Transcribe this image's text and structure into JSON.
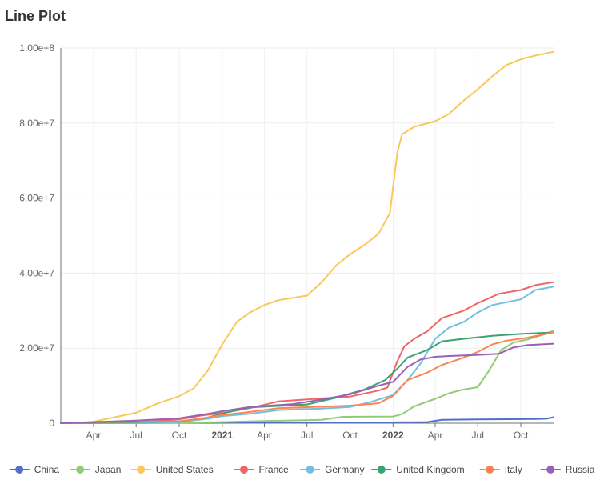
{
  "page": {
    "title": "Line Plot"
  },
  "colors": {
    "China": "#5470c6",
    "Japan": "#91cc75",
    "United States": "#fac858",
    "France": "#ee6666",
    "Germany": "#73c0de",
    "United Kingdom": "#3ba272",
    "Italy": "#fc8452",
    "Russia": "#9a60b4"
  },
  "chart_data": {
    "type": "line",
    "title": "Line Plot",
    "xlabel": "",
    "ylabel": "",
    "x_range": [
      "2020-01-22",
      "2022-12-10"
    ],
    "ylim": [
      0,
      100000000
    ],
    "y_ticks": [
      {
        "value": 0,
        "label": "0"
      },
      {
        "value": 20000000,
        "label": "2.00e+7"
      },
      {
        "value": 40000000,
        "label": "4.00e+7"
      },
      {
        "value": 60000000,
        "label": "6.00e+7"
      },
      {
        "value": 80000000,
        "label": "8.00e+7"
      },
      {
        "value": 100000000,
        "label": "1.00e+8"
      }
    ],
    "x_ticks": [
      {
        "date": "2020-04-01",
        "label": "Apr",
        "bold": false
      },
      {
        "date": "2020-07-01",
        "label": "Jul",
        "bold": false
      },
      {
        "date": "2020-10-01",
        "label": "Oct",
        "bold": false
      },
      {
        "date": "2021-01-01",
        "label": "2021",
        "bold": true
      },
      {
        "date": "2021-04-01",
        "label": "Apr",
        "bold": false
      },
      {
        "date": "2021-07-01",
        "label": "Jul",
        "bold": false
      },
      {
        "date": "2021-10-01",
        "label": "Oct",
        "bold": false
      },
      {
        "date": "2022-01-01",
        "label": "2022",
        "bold": true
      },
      {
        "date": "2022-04-01",
        "label": "Apr",
        "bold": false
      },
      {
        "date": "2022-07-01",
        "label": "Jul",
        "bold": false
      },
      {
        "date": "2022-10-01",
        "label": "Oct",
        "bold": false
      }
    ],
    "grid": true,
    "legend_position": "bottom",
    "series": [
      {
        "name": "China",
        "points": [
          [
            "2020-01-22",
            0
          ],
          [
            "2021-12-01",
            200000
          ],
          [
            "2022-03-15",
            300000
          ],
          [
            "2022-04-15",
            900000
          ],
          [
            "2022-07-01",
            1000000
          ],
          [
            "2022-11-01",
            1100000
          ],
          [
            "2022-11-25",
            1200000
          ],
          [
            "2022-12-10",
            1600000
          ]
        ]
      },
      {
        "name": "Japan",
        "points": [
          [
            "2020-01-22",
            0
          ],
          [
            "2020-10-01",
            100000
          ],
          [
            "2021-01-01",
            300000
          ],
          [
            "2021-04-01",
            600000
          ],
          [
            "2021-08-01",
            900000
          ],
          [
            "2021-09-15",
            1700000
          ],
          [
            "2022-01-01",
            1800000
          ],
          [
            "2022-01-20",
            2400000
          ],
          [
            "2022-02-15",
            4500000
          ],
          [
            "2022-04-01",
            6500000
          ],
          [
            "2022-05-01",
            8000000
          ],
          [
            "2022-06-01",
            9000000
          ],
          [
            "2022-07-01",
            9600000
          ],
          [
            "2022-07-25",
            14000000
          ],
          [
            "2022-08-20",
            19500000
          ],
          [
            "2022-09-15",
            21500000
          ],
          [
            "2022-10-15",
            22300000
          ],
          [
            "2022-11-15",
            23500000
          ],
          [
            "2022-12-10",
            24600000
          ]
        ]
      },
      {
        "name": "United States",
        "points": [
          [
            "2020-01-22",
            0
          ],
          [
            "2020-03-25",
            200000
          ],
          [
            "2020-05-01",
            1200000
          ],
          [
            "2020-07-01",
            2800000
          ],
          [
            "2020-08-15",
            5200000
          ],
          [
            "2020-10-01",
            7200000
          ],
          [
            "2020-11-01",
            9300000
          ],
          [
            "2020-12-01",
            14000000
          ],
          [
            "2021-01-01",
            21000000
          ],
          [
            "2021-02-01",
            27000000
          ],
          [
            "2021-03-01",
            29500000
          ],
          [
            "2021-04-01",
            31500000
          ],
          [
            "2021-05-01",
            32800000
          ],
          [
            "2021-07-01",
            34000000
          ],
          [
            "2021-08-01",
            37500000
          ],
          [
            "2021-09-01",
            42000000
          ],
          [
            "2021-10-01",
            45000000
          ],
          [
            "2021-11-01",
            47500000
          ],
          [
            "2021-12-01",
            50500000
          ],
          [
            "2021-12-25",
            56000000
          ],
          [
            "2022-01-10",
            72000000
          ],
          [
            "2022-01-20",
            77000000
          ],
          [
            "2022-02-15",
            79000000
          ],
          [
            "2022-04-01",
            80500000
          ],
          [
            "2022-05-01",
            82500000
          ],
          [
            "2022-06-01",
            86000000
          ],
          [
            "2022-07-01",
            89000000
          ],
          [
            "2022-08-01",
            92500000
          ],
          [
            "2022-09-01",
            95500000
          ],
          [
            "2022-10-01",
            97000000
          ],
          [
            "2022-11-01",
            98000000
          ],
          [
            "2022-12-10",
            99000000
          ]
        ]
      },
      {
        "name": "France",
        "points": [
          [
            "2020-01-22",
            0
          ],
          [
            "2020-07-01",
            200000
          ],
          [
            "2020-10-01",
            1000000
          ],
          [
            "2020-11-15",
            2000000
          ],
          [
            "2021-01-01",
            2700000
          ],
          [
            "2021-03-01",
            4000000
          ],
          [
            "2021-05-01",
            5800000
          ],
          [
            "2021-08-01",
            6600000
          ],
          [
            "2021-10-01",
            7100000
          ],
          [
            "2021-12-01",
            8700000
          ],
          [
            "2021-12-20",
            9500000
          ],
          [
            "2022-01-10",
            16500000
          ],
          [
            "2022-01-25",
            20500000
          ],
          [
            "2022-02-15",
            22500000
          ],
          [
            "2022-03-15",
            24500000
          ],
          [
            "2022-04-15",
            28000000
          ],
          [
            "2022-06-01",
            30000000
          ],
          [
            "2022-07-01",
            32000000
          ],
          [
            "2022-08-15",
            34500000
          ],
          [
            "2022-10-01",
            35500000
          ],
          [
            "2022-11-01",
            36800000
          ],
          [
            "2022-12-10",
            37600000
          ]
        ]
      },
      {
        "name": "Germany",
        "points": [
          [
            "2020-01-22",
            0
          ],
          [
            "2020-07-01",
            200000
          ],
          [
            "2020-10-01",
            300000
          ],
          [
            "2020-12-01",
            1200000
          ],
          [
            "2021-01-01",
            1900000
          ],
          [
            "2021-03-01",
            2500000
          ],
          [
            "2021-05-01",
            3500000
          ],
          [
            "2021-08-01",
            3900000
          ],
          [
            "2021-10-01",
            4300000
          ],
          [
            "2021-11-15",
            5700000
          ],
          [
            "2022-01-01",
            7500000
          ],
          [
            "2022-02-01",
            11500000
          ],
          [
            "2022-03-01",
            16000000
          ],
          [
            "2022-04-01",
            22500000
          ],
          [
            "2022-05-01",
            25500000
          ],
          [
            "2022-06-01",
            27000000
          ],
          [
            "2022-07-01",
            29500000
          ],
          [
            "2022-08-01",
            31500000
          ],
          [
            "2022-10-01",
            33000000
          ],
          [
            "2022-11-01",
            35500000
          ],
          [
            "2022-12-10",
            36400000
          ]
        ]
      },
      {
        "name": "United Kingdom",
        "points": [
          [
            "2020-01-22",
            0
          ],
          [
            "2020-07-01",
            300000
          ],
          [
            "2020-10-01",
            500000
          ],
          [
            "2020-12-01",
            1500000
          ],
          [
            "2021-01-01",
            2600000
          ],
          [
            "2021-03-01",
            4200000
          ],
          [
            "2021-07-01",
            5000000
          ],
          [
            "2021-09-01",
            6800000
          ],
          [
            "2021-11-01",
            9000000
          ],
          [
            "2021-12-15",
            11500000
          ],
          [
            "2022-01-10",
            14500000
          ],
          [
            "2022-02-01",
            17500000
          ],
          [
            "2022-03-15",
            19500000
          ],
          [
            "2022-04-15",
            21800000
          ],
          [
            "2022-06-01",
            22500000
          ],
          [
            "2022-08-01",
            23300000
          ],
          [
            "2022-10-01",
            23800000
          ],
          [
            "2022-12-10",
            24200000
          ]
        ]
      },
      {
        "name": "Italy",
        "points": [
          [
            "2020-01-22",
            0
          ],
          [
            "2020-04-01",
            300000
          ],
          [
            "2020-10-01",
            500000
          ],
          [
            "2020-11-15",
            1200000
          ],
          [
            "2021-01-01",
            2200000
          ],
          [
            "2021-03-01",
            3000000
          ],
          [
            "2021-05-01",
            4000000
          ],
          [
            "2021-08-01",
            4400000
          ],
          [
            "2021-10-01",
            4700000
          ],
          [
            "2021-12-01",
            5300000
          ],
          [
            "2022-01-01",
            7300000
          ],
          [
            "2022-02-01",
            11500000
          ],
          [
            "2022-03-15",
            13500000
          ],
          [
            "2022-04-15",
            15500000
          ],
          [
            "2022-06-01",
            17500000
          ],
          [
            "2022-07-01",
            19000000
          ],
          [
            "2022-08-01",
            21000000
          ],
          [
            "2022-09-01",
            22000000
          ],
          [
            "2022-10-15",
            22800000
          ],
          [
            "2022-12-10",
            24200000
          ]
        ]
      },
      {
        "name": "Russia",
        "points": [
          [
            "2020-01-22",
            0
          ],
          [
            "2020-07-01",
            700000
          ],
          [
            "2020-10-01",
            1300000
          ],
          [
            "2020-12-01",
            2500000
          ],
          [
            "2021-01-01",
            3200000
          ],
          [
            "2021-03-01",
            4300000
          ],
          [
            "2021-06-01",
            5100000
          ],
          [
            "2021-08-01",
            6300000
          ],
          [
            "2021-10-01",
            7700000
          ],
          [
            "2021-12-01",
            10000000
          ],
          [
            "2022-01-01",
            11000000
          ],
          [
            "2022-02-01",
            15000000
          ],
          [
            "2022-03-01",
            17000000
          ],
          [
            "2022-04-01",
            17700000
          ],
          [
            "2022-05-01",
            17900000
          ],
          [
            "2022-07-01",
            18200000
          ],
          [
            "2022-08-15",
            18500000
          ],
          [
            "2022-09-15",
            20200000
          ],
          [
            "2022-10-15",
            20800000
          ],
          [
            "2022-12-10",
            21200000
          ]
        ]
      }
    ]
  },
  "legend": {
    "items": [
      "China",
      "Japan",
      "United States",
      "France",
      "Germany",
      "United Kingdom",
      "Italy",
      "Russia"
    ]
  }
}
